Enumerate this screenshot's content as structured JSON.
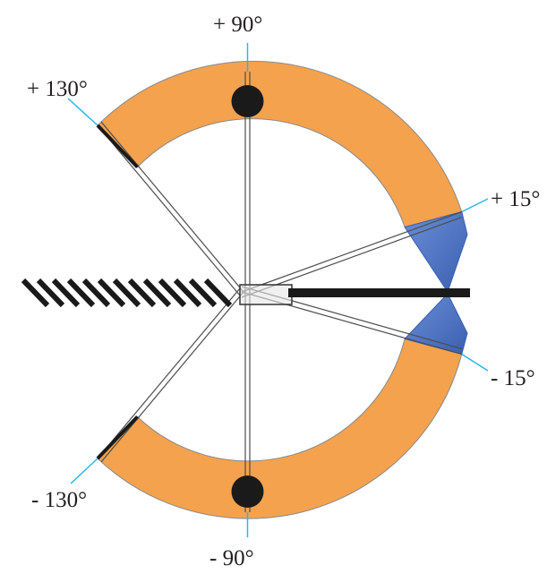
{
  "diagram": {
    "labels": {
      "plus_90": "+ 90°",
      "plus_130": "+ 130°",
      "plus_15": "+ 15°",
      "minus_15": "- 15°",
      "minus_130": "- 130°",
      "minus_90": "- 90°"
    },
    "colors": {
      "orange_band": "#f5a24e",
      "blue_region": "#4a74c4",
      "leader_line": "#29b6e8",
      "radial_line": "#4d4d4d",
      "marker": "#1a1a1a",
      "background": "#ffffff"
    }
  }
}
